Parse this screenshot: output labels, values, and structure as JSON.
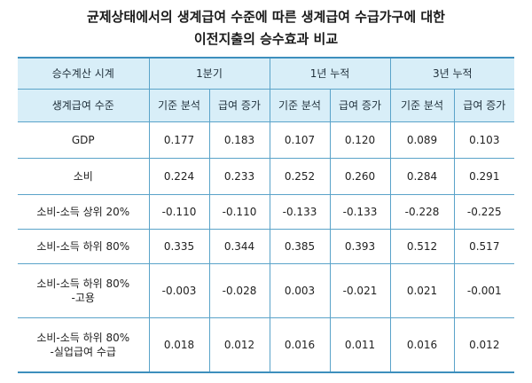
{
  "title_line1": "균제상태에서의 생계급여 수준에 따른 생계급여 수급가구에 대한",
  "title_line2": "이전지출의 승수효과 비교",
  "header": {
    "row1_label": "승수계산 시계",
    "row2_label": "생계급여 수준",
    "periods": [
      "1분기",
      "1년 누적",
      "3년 누적"
    ],
    "subcols": [
      "기준 분석",
      "급여 증가",
      "기준 분석",
      "급여 증가",
      "기준 분석",
      "급여 증가"
    ]
  },
  "rows": [
    {
      "label": [
        "GDP"
      ],
      "values": [
        "0.177",
        "0.183",
        "0.107",
        "0.120",
        "0.089",
        "0.103"
      ]
    },
    {
      "label": [
        "소비"
      ],
      "values": [
        "0.224",
        "0.233",
        "0.252",
        "0.260",
        "0.284",
        "0.291"
      ]
    },
    {
      "label": [
        "소비-소득 상위 20%"
      ],
      "values": [
        "-0.110",
        "-0.110",
        "-0.133",
        "-0.133",
        "-0.228",
        "-0.225"
      ]
    },
    {
      "label": [
        "소비-소득 하위 80%"
      ],
      "values": [
        "0.335",
        "0.344",
        "0.385",
        "0.393",
        "0.512",
        "0.517"
      ]
    },
    {
      "label": [
        "소비-소득 하위 80%",
        "-고용"
      ],
      "values": [
        "-0.003",
        "-0.028",
        "0.003",
        "-0.021",
        "0.021",
        "-0.001"
      ]
    },
    {
      "label": [
        "소비-소득 하위 80%",
        "-실업급여 수급"
      ],
      "values": [
        "0.018",
        "0.012",
        "0.016",
        "0.011",
        "0.016",
        "0.012"
      ]
    }
  ]
}
